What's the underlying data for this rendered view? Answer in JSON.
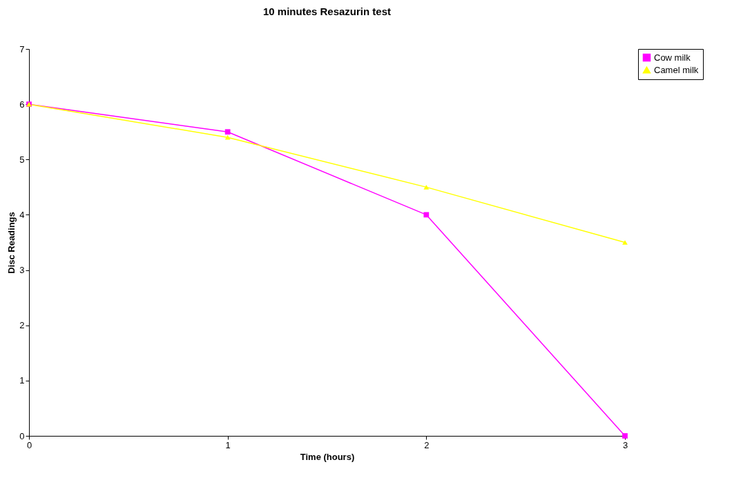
{
  "chart_data": {
    "type": "line",
    "title": "10 minutes Resazurin test",
    "xlabel": "Time (hours)",
    "ylabel": "Disc Readings",
    "x": [
      0,
      1,
      2,
      3
    ],
    "xlim": [
      0,
      3
    ],
    "xticks": [
      0,
      1,
      2,
      3
    ],
    "ylim": [
      0,
      7
    ],
    "yticks": [
      0,
      1,
      2,
      3,
      4,
      5,
      6,
      7
    ],
    "grid": false,
    "legend": "right",
    "line_style": "solid",
    "series": [
      {
        "name": "Cow milk",
        "color": "#ff00ff",
        "marker": "square",
        "values": [
          6,
          5.5,
          4,
          0
        ]
      },
      {
        "name": "Camel milk",
        "color": "#ffff00",
        "marker": "triangle",
        "values": [
          6,
          5.4,
          4.5,
          3.5
        ]
      }
    ]
  }
}
